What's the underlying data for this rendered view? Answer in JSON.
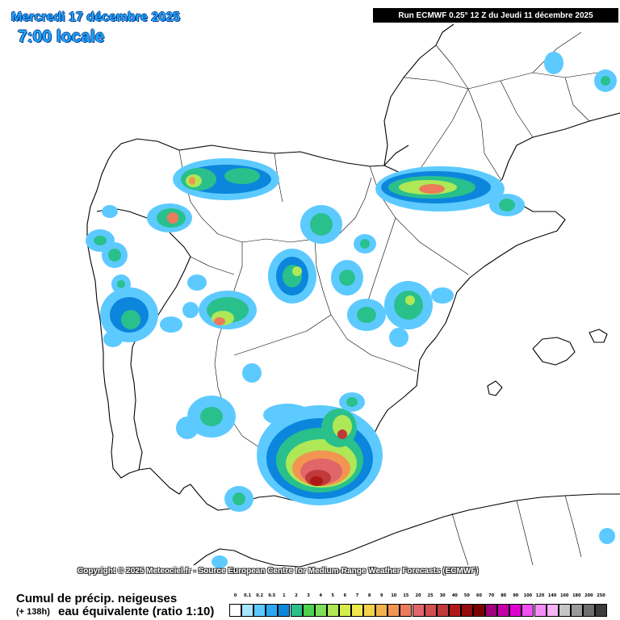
{
  "header": {
    "date_label": "Mercredi 17 décembre 2025",
    "time_label": "7:00 locale",
    "run_label": "Run ECMWF 0.25° 12 Z du Jeudi 11 décembre 2025"
  },
  "copyright": "Copyright © 2025 Meteociel.fr - Source European Centre for Medium-Range Weather Forecasts (ECMWF)",
  "legend": {
    "title": "Cumul de précip. neigeuses",
    "hours": "(+ 138h)",
    "subtitle": "eau équivalente (ratio 1:10)",
    "levels": [
      "0",
      "0.1",
      "0.2",
      "0.5",
      "1",
      "2",
      "3",
      "4",
      "5",
      "6",
      "7",
      "8",
      "9",
      "10",
      "15",
      "20",
      "25",
      "30",
      "40",
      "50",
      "60",
      "70",
      "80",
      "90",
      "100",
      "120",
      "140",
      "160",
      "180",
      "200",
      "250"
    ],
    "colors": [
      "#ffffff",
      "#a6e4ff",
      "#5ccaff",
      "#2aa8f2",
      "#0c86dc",
      "#29c08c",
      "#4cd24c",
      "#7ee05a",
      "#aee856",
      "#d4ec4c",
      "#eee84a",
      "#f4d24a",
      "#f4b24c",
      "#f29552",
      "#ec7b5c",
      "#e0666a",
      "#d25050",
      "#c03a3a",
      "#b01818",
      "#960a0a",
      "#7a0000",
      "#a0007c",
      "#c600a8",
      "#e000d0",
      "#f050f0",
      "#f68cf6",
      "#f6b4f6",
      "#c6c6c6",
      "#9a9a9a",
      "#6e6e6e",
      "#3c3c3c"
    ]
  },
  "map": {
    "land_color": "#ffffff",
    "sea_color": "#ffffff",
    "border_color": "#000000"
  }
}
